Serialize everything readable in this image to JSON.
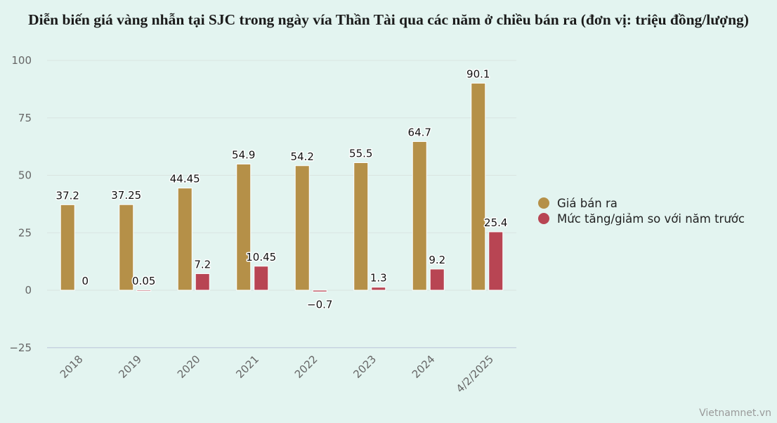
{
  "title": "Diễn biến giá vàng nhẫn tại SJC trong ngày vía Thần Tài qua các năm ở chiều bán ra (đơn vị: triệu đồng/lượng)",
  "watermark": "Vietnamnet.vn",
  "colors": {
    "background": "#e3f4f0",
    "gold": "#b59048",
    "red": "#b84553",
    "grid": "#d9e4e1",
    "axis": "#c7d3e0",
    "tick_text": "#666666"
  },
  "legend": [
    {
      "label": "Giá bán ra",
      "color": "#b59048"
    },
    {
      "label": "Mức tăng/giảm so với năm trước",
      "color": "#b84553"
    }
  ],
  "chart_data": {
    "type": "bar",
    "title": "Diễn biến giá vàng nhẫn tại SJC trong ngày vía Thần Tài qua các năm ở chiều bán ra (đơn vị: triệu đồng/lượng)",
    "xlabel": "",
    "ylabel": "",
    "categories": [
      "2018",
      "2019",
      "2020",
      "2021",
      "2022",
      "2023",
      "2024",
      "4/2/2025"
    ],
    "series": [
      {
        "name": "Giá bán ra",
        "color": "#b59048",
        "values": [
          37.2,
          37.25,
          44.45,
          54.9,
          54.2,
          55.5,
          64.7,
          90.1
        ],
        "labels": [
          "37.2",
          "37.25",
          "44.45",
          "54.9",
          "54.2",
          "55.5",
          "64.7",
          "90.1"
        ]
      },
      {
        "name": "Mức tăng/giảm so với năm trước",
        "color": "#b84553",
        "values": [
          0,
          0.05,
          7.2,
          10.45,
          -0.7,
          1.3,
          9.2,
          25.4
        ],
        "labels": [
          "0",
          "0.05",
          "7.2",
          "10.45",
          "−0.7",
          "1.3",
          "9.2",
          "25.4"
        ]
      }
    ],
    "ylim": [
      -25,
      100
    ],
    "yticks": [
      100,
      75,
      50,
      25,
      0,
      -25
    ],
    "ytick_labels": [
      "100",
      "75",
      "50",
      "25",
      "0",
      "−25"
    ],
    "grid": true,
    "legend_position": "right"
  }
}
